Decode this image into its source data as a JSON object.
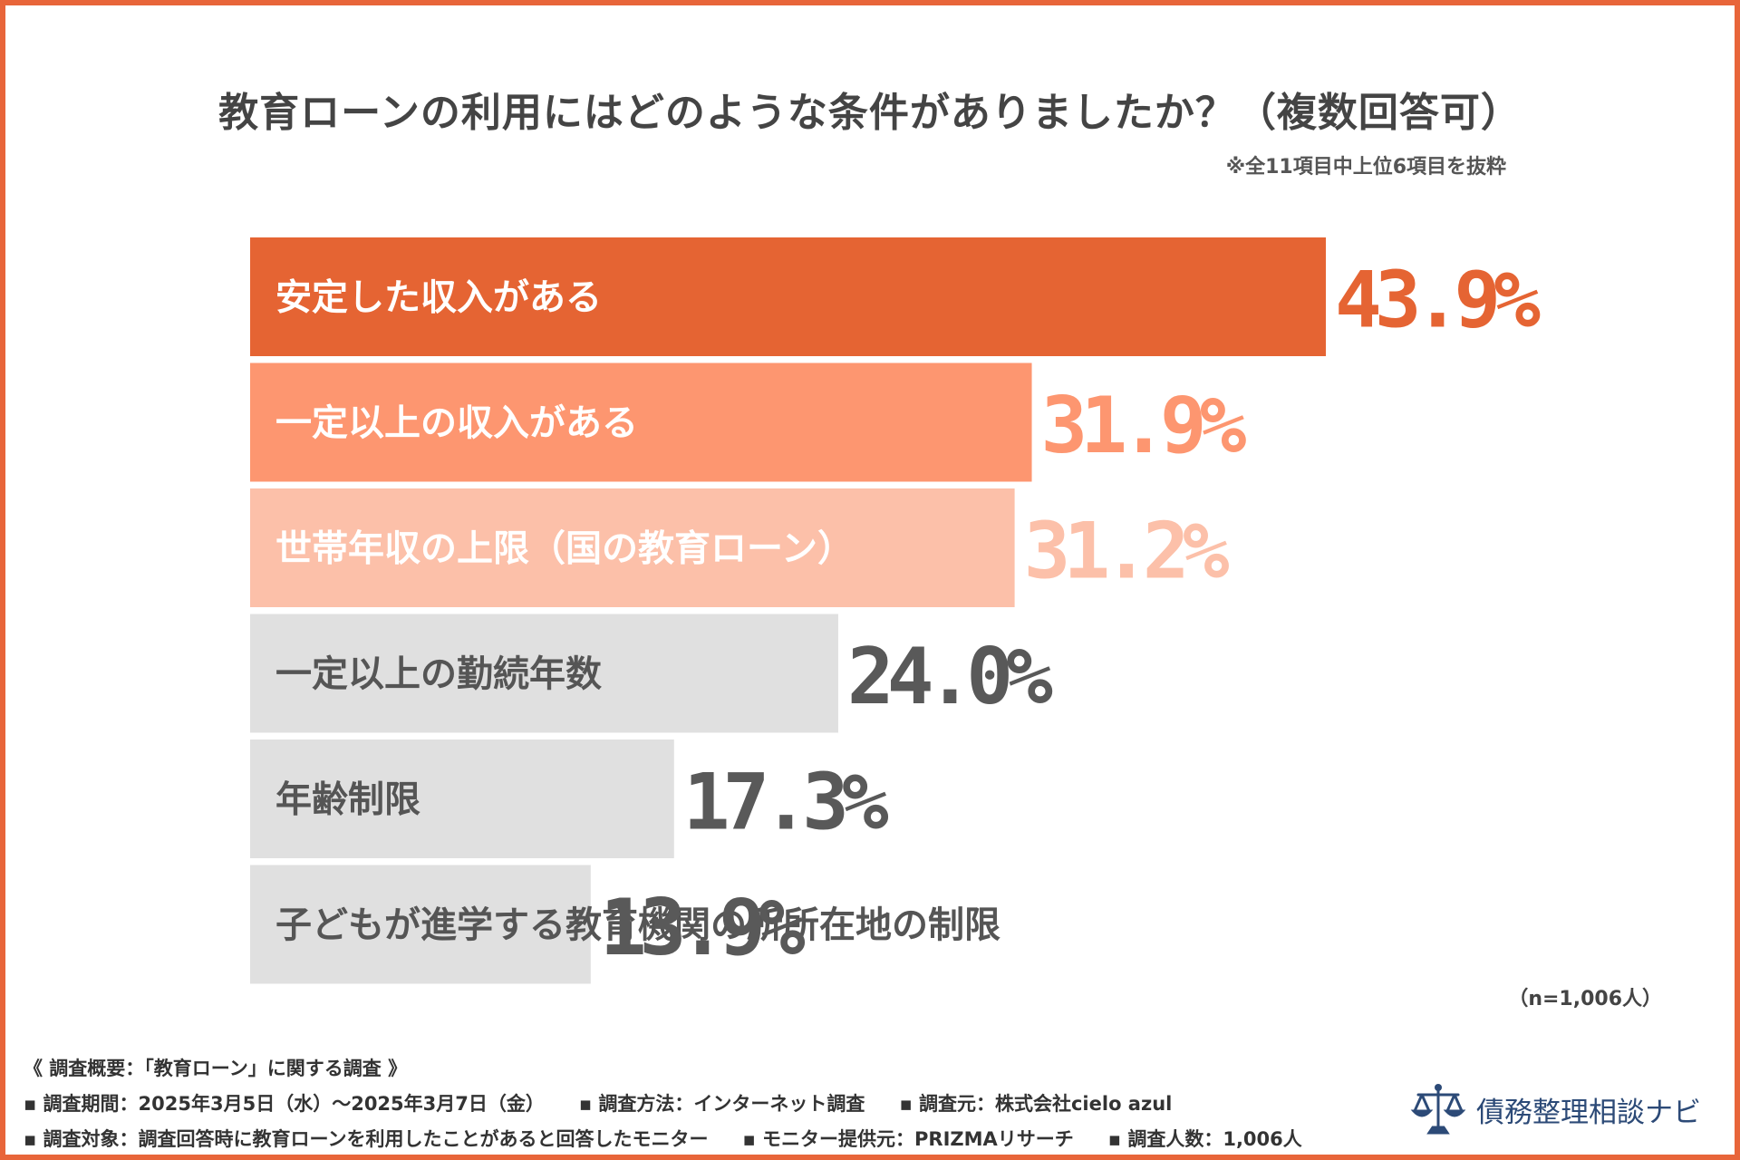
{
  "title": "教育ローンの利用にはどのような条件がありましたか？（複数回答可）",
  "note": "※全11項目中上位6項目を抜粋",
  "chart_data": {
    "type": "bar",
    "orientation": "horizontal",
    "categories": [
      "安定した収入がある",
      "一定以上の収入がある",
      "世帯年収の上限（国の教育ローン）",
      "一定以上の勤続年数",
      "年齢制限",
      "子どもが進学する教育機関の所所在地の制限"
    ],
    "values": [
      43.9,
      31.9,
      31.2,
      24.0,
      17.3,
      13.9
    ],
    "value_labels": [
      "43.9%",
      "31.9%",
      "31.2%",
      "24.0%",
      "17.3%",
      "13.9%"
    ],
    "bar_colors": [
      "#e56433",
      "#fd9670",
      "#fcc0a9",
      "#e0e0e0",
      "#e0e0e0",
      "#e0e0e0"
    ],
    "label_colors": [
      "#ffffff",
      "#ffffff",
      "#ffffff",
      "#555555",
      "#555555",
      "#555555"
    ],
    "value_colors": [
      "#e56433",
      "#fd9670",
      "#fcc0a9",
      "#595959",
      "#595959",
      "#595959"
    ],
    "xlim": [
      0,
      43.9
    ],
    "grid": false,
    "legend": "none"
  },
  "sample_size": "（n=1,006人）",
  "survey": {
    "heading": "《 調査概要：「教育ローン」に関する調査 》",
    "period": "▪ 調査期間：2025年3月5日（水）〜2025年3月7日（金）",
    "method": "▪ 調査方法：インターネット調査",
    "source": "▪ 調査元：株式会社cielo azul",
    "target": "▪ 調査対象：調査回答時に教育ローンを利用したことがあると回答したモニター",
    "provider": "▪ モニター提供元：PRIZMAリサーチ",
    "count": "▪ 調査人数：1,006人"
  },
  "brand": {
    "name": "債務整理相談ナビ",
    "icon": "scales-icon"
  },
  "colors": {
    "frame": "#e8653a",
    "brand": "#2c4a77"
  }
}
